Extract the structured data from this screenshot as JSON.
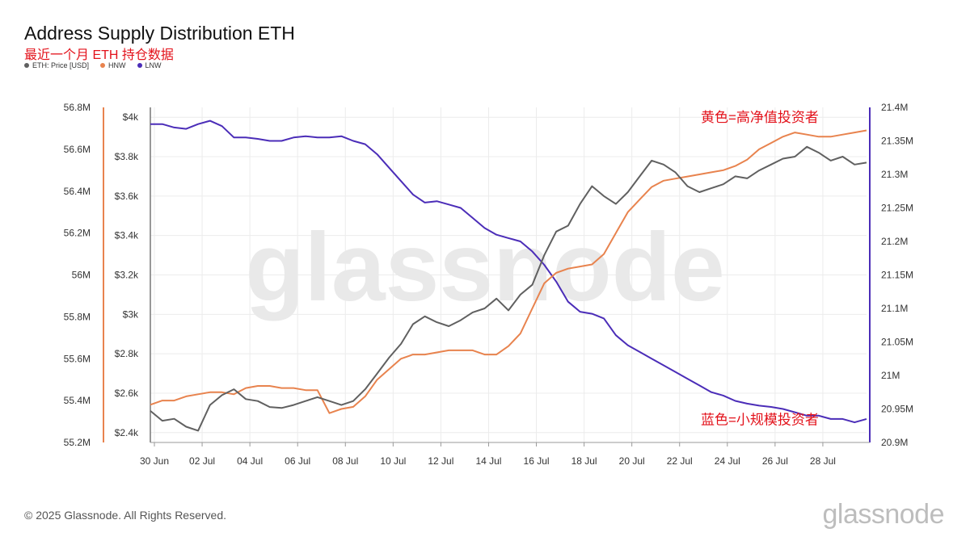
{
  "header": {
    "title": "Address Supply Distribution ETH",
    "subtitle": "最近一个月 ETH 持仓数据"
  },
  "footer": {
    "copyright": "© 2025 Glassnode. All Rights Reserved.",
    "logo_text": "glassnode"
  },
  "watermark": "glassnode",
  "colors": {
    "price": "#606060",
    "hnw": "#e8834e",
    "lnw": "#4b2db8",
    "annotation": "#e3121b",
    "grid": "#ececec"
  },
  "chart_data": {
    "type": "line",
    "legend_position": "top-left",
    "grid": true,
    "x_tick_labels": [
      "30 Jun",
      "02 Jul",
      "04 Jul",
      "06 Jul",
      "08 Jul",
      "10 Jul",
      "12 Jul",
      "14 Jul",
      "16 Jul",
      "18 Jul",
      "20 Jul",
      "22 Jul",
      "24 Jul",
      "26 Jul",
      "28 Jul"
    ],
    "x_range_days": [
      0,
      30
    ],
    "axes": {
      "left_outer": {
        "ticks": [
          "56.8M",
          "56.6M",
          "56.4M",
          "56.2M",
          "56M",
          "55.8M",
          "55.6M",
          "55.4M",
          "55.2M"
        ],
        "range": [
          55.2,
          56.8
        ],
        "unit": "M"
      },
      "left_inner": {
        "ticks": [
          "$4k",
          "$3.8k",
          "$3.6k",
          "$3.4k",
          "$3.2k",
          "$3k",
          "$2.8k",
          "$2.6k",
          "$2.4k"
        ],
        "range": [
          2350,
          4050
        ]
      },
      "right": {
        "ticks": [
          "21.4M",
          "21.35M",
          "21.3M",
          "21.25M",
          "21.2M",
          "21.15M",
          "21.1M",
          "21.05M",
          "21M",
          "20.95M",
          "20.9M"
        ],
        "range": [
          20.9,
          21.4
        ],
        "unit": "M"
      }
    },
    "series": [
      {
        "name": "ETH: Price [USD]",
        "axis": "left_inner",
        "color": "#606060",
        "points": [
          [
            0,
            2510
          ],
          [
            0.5,
            2460
          ],
          [
            1,
            2470
          ],
          [
            1.5,
            2430
          ],
          [
            2,
            2410
          ],
          [
            2.5,
            2540
          ],
          [
            3,
            2590
          ],
          [
            3.5,
            2620
          ],
          [
            4,
            2570
          ],
          [
            4.5,
            2560
          ],
          [
            5,
            2530
          ],
          [
            5.5,
            2525
          ],
          [
            6,
            2540
          ],
          [
            6.5,
            2560
          ],
          [
            7,
            2580
          ],
          [
            7.5,
            2560
          ],
          [
            8,
            2540
          ],
          [
            8.5,
            2560
          ],
          [
            9,
            2620
          ],
          [
            9.5,
            2700
          ],
          [
            10,
            2780
          ],
          [
            10.5,
            2850
          ],
          [
            11,
            2950
          ],
          [
            11.5,
            2990
          ],
          [
            12,
            2960
          ],
          [
            12.5,
            2940
          ],
          [
            13,
            2970
          ],
          [
            13.5,
            3010
          ],
          [
            14,
            3030
          ],
          [
            14.5,
            3080
          ],
          [
            15,
            3020
          ],
          [
            15.5,
            3100
          ],
          [
            16,
            3150
          ],
          [
            16.5,
            3300
          ],
          [
            17,
            3420
          ],
          [
            17.5,
            3450
          ],
          [
            18,
            3560
          ],
          [
            18.5,
            3650
          ],
          [
            19,
            3600
          ],
          [
            19.5,
            3560
          ],
          [
            20,
            3620
          ],
          [
            20.5,
            3700
          ],
          [
            21,
            3780
          ],
          [
            21.5,
            3760
          ],
          [
            22,
            3720
          ],
          [
            22.5,
            3650
          ],
          [
            23,
            3620
          ],
          [
            23.5,
            3640
          ],
          [
            24,
            3660
          ],
          [
            24.5,
            3700
          ],
          [
            25,
            3690
          ],
          [
            25.5,
            3730
          ],
          [
            26,
            3760
          ],
          [
            26.5,
            3790
          ],
          [
            27,
            3800
          ],
          [
            27.5,
            3850
          ],
          [
            28,
            3820
          ],
          [
            28.5,
            3780
          ],
          [
            29,
            3800
          ],
          [
            29.5,
            3760
          ],
          [
            30,
            3770
          ]
        ]
      },
      {
        "name": "HNW",
        "axis": "left_outer",
        "color": "#e8834e",
        "points": [
          [
            0,
            55.38
          ],
          [
            0.5,
            55.4
          ],
          [
            1,
            55.4
          ],
          [
            1.5,
            55.42
          ],
          [
            2,
            55.43
          ],
          [
            2.5,
            55.44
          ],
          [
            3,
            55.44
          ],
          [
            3.5,
            55.43
          ],
          [
            4,
            55.46
          ],
          [
            4.5,
            55.47
          ],
          [
            5,
            55.47
          ],
          [
            5.5,
            55.46
          ],
          [
            6,
            55.46
          ],
          [
            6.5,
            55.45
          ],
          [
            7,
            55.45
          ],
          [
            7.5,
            55.34
          ],
          [
            8,
            55.36
          ],
          [
            8.5,
            55.37
          ],
          [
            9,
            55.42
          ],
          [
            9.5,
            55.5
          ],
          [
            10,
            55.55
          ],
          [
            10.5,
            55.6
          ],
          [
            11,
            55.62
          ],
          [
            11.5,
            55.62
          ],
          [
            12,
            55.63
          ],
          [
            12.5,
            55.64
          ],
          [
            13,
            55.64
          ],
          [
            13.5,
            55.64
          ],
          [
            14,
            55.62
          ],
          [
            14.5,
            55.62
          ],
          [
            15,
            55.66
          ],
          [
            15.5,
            55.72
          ],
          [
            16,
            55.84
          ],
          [
            16.5,
            55.96
          ],
          [
            17,
            56.01
          ],
          [
            17.5,
            56.03
          ],
          [
            18,
            56.04
          ],
          [
            18.5,
            56.05
          ],
          [
            19,
            56.1
          ],
          [
            19.5,
            56.2
          ],
          [
            20,
            56.3
          ],
          [
            20.5,
            56.36
          ],
          [
            21,
            56.42
          ],
          [
            21.5,
            56.45
          ],
          [
            22,
            56.46
          ],
          [
            22.5,
            56.47
          ],
          [
            23,
            56.48
          ],
          [
            23.5,
            56.49
          ],
          [
            24,
            56.5
          ],
          [
            24.5,
            56.52
          ],
          [
            25,
            56.55
          ],
          [
            25.5,
            56.6
          ],
          [
            26,
            56.63
          ],
          [
            26.5,
            56.66
          ],
          [
            27,
            56.68
          ],
          [
            27.5,
            56.67
          ],
          [
            28,
            56.66
          ],
          [
            28.5,
            56.66
          ],
          [
            29,
            56.67
          ],
          [
            29.5,
            56.68
          ],
          [
            30,
            56.69
          ]
        ]
      },
      {
        "name": "LNW",
        "axis": "right",
        "color": "#4b2db8",
        "points": [
          [
            0,
            21.375
          ],
          [
            0.5,
            21.375
          ],
          [
            1,
            21.37
          ],
          [
            1.5,
            21.368
          ],
          [
            2,
            21.375
          ],
          [
            2.5,
            21.38
          ],
          [
            3,
            21.372
          ],
          [
            3.5,
            21.355
          ],
          [
            4,
            21.355
          ],
          [
            4.5,
            21.353
          ],
          [
            5,
            21.35
          ],
          [
            5.5,
            21.35
          ],
          [
            6,
            21.355
          ],
          [
            6.5,
            21.357
          ],
          [
            7,
            21.355
          ],
          [
            7.5,
            21.355
          ],
          [
            8,
            21.357
          ],
          [
            8.5,
            21.35
          ],
          [
            9,
            21.345
          ],
          [
            9.5,
            21.33
          ],
          [
            10,
            21.31
          ],
          [
            10.5,
            21.29
          ],
          [
            11,
            21.27
          ],
          [
            11.5,
            21.258
          ],
          [
            12,
            21.26
          ],
          [
            12.5,
            21.255
          ],
          [
            13,
            21.25
          ],
          [
            13.5,
            21.235
          ],
          [
            14,
            21.22
          ],
          [
            14.5,
            21.21
          ],
          [
            15,
            21.205
          ],
          [
            15.5,
            21.2
          ],
          [
            16,
            21.185
          ],
          [
            16.5,
            21.165
          ],
          [
            17,
            21.14
          ],
          [
            17.5,
            21.11
          ],
          [
            18,
            21.095
          ],
          [
            18.5,
            21.092
          ],
          [
            19,
            21.085
          ],
          [
            19.5,
            21.06
          ],
          [
            20,
            21.045
          ],
          [
            20.5,
            21.035
          ],
          [
            21,
            21.025
          ],
          [
            21.5,
            21.015
          ],
          [
            22,
            21.005
          ],
          [
            22.5,
            20.995
          ],
          [
            23,
            20.985
          ],
          [
            23.5,
            20.975
          ],
          [
            24,
            20.97
          ],
          [
            24.5,
            20.962
          ],
          [
            25,
            20.958
          ],
          [
            25.5,
            20.955
          ],
          [
            26,
            20.953
          ],
          [
            26.5,
            20.95
          ],
          [
            27,
            20.945
          ],
          [
            27.5,
            20.94
          ],
          [
            28,
            20.94
          ],
          [
            28.5,
            20.935
          ],
          [
            29,
            20.935
          ],
          [
            29.5,
            20.93
          ],
          [
            30,
            20.935
          ]
        ]
      }
    ],
    "annotations": [
      {
        "text": "黄色=高净值投资者",
        "at_day": 28,
        "at_hnw": 56.73
      },
      {
        "text": "蓝色=小规模投资者",
        "at_day": 28,
        "at_lnw": 20.945
      }
    ]
  }
}
